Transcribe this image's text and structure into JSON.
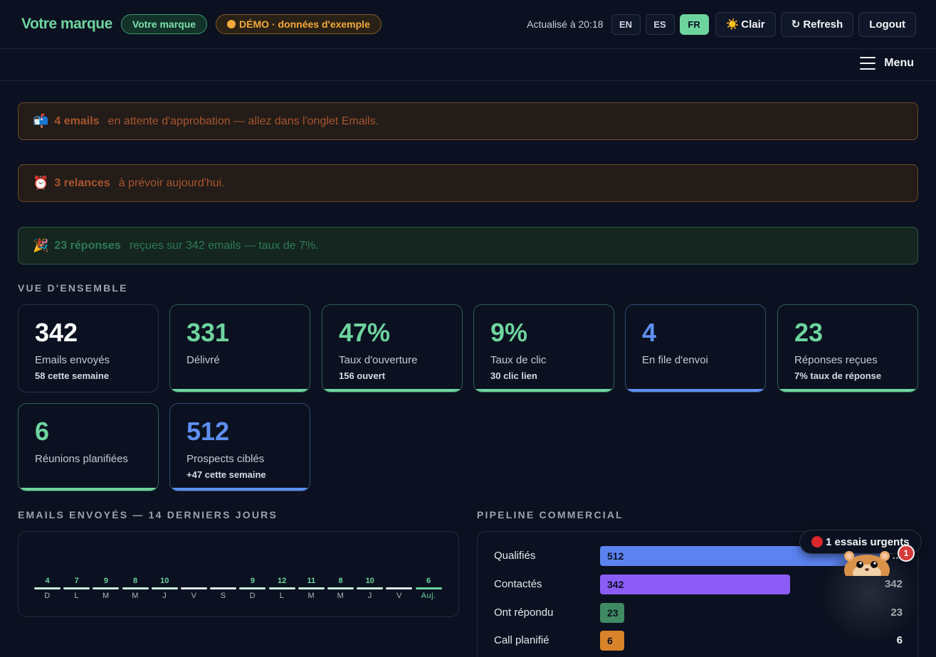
{
  "header": {
    "brand": "Votre marque",
    "brand_pill": "Votre marque",
    "demo_pill": "DÉMO · données d'exemple",
    "updated": "Actualisé à 20:18",
    "langs": [
      "EN",
      "ES",
      "FR"
    ],
    "active_lang": "FR",
    "theme_label": "Clair",
    "theme_icon": "☀️",
    "refresh_label": "↻ Refresh",
    "logout_label": "Logout",
    "menu_label": "Menu"
  },
  "alerts": [
    {
      "icon": "📬",
      "strong": "4 emails",
      "text": "en attente d'approbation — allez dans l'onglet Emails."
    },
    {
      "icon": "⏰",
      "strong": "3 relances",
      "text": "à prévoir aujourd'hui."
    },
    {
      "icon": "🎉",
      "strong": "23 réponses",
      "text": "reçues sur 342 emails — taux de 7%."
    }
  ],
  "overview": {
    "title": "VUE D'ENSEMBLE",
    "cards": [
      {
        "value": "342",
        "label": "Emails envoyés",
        "sub": "58 cette semaine",
        "color": "#ffffff"
      },
      {
        "value": "331",
        "label": "Délivré",
        "sub": "",
        "color": "#6ed49e"
      },
      {
        "value": "47%",
        "label": "Taux d'ouverture",
        "sub": "156 ouvert",
        "color": "#6ed49e"
      },
      {
        "value": "9%",
        "label": "Taux de clic",
        "sub": "30 clic lien",
        "color": "#6ed49e"
      },
      {
        "value": "4",
        "label": "En file d'envoi",
        "sub": "",
        "color": "#5d8ff0"
      },
      {
        "value": "23",
        "label": "Réponses reçues",
        "sub": "7% taux de réponse",
        "color": "#6ed49e"
      },
      {
        "value": "6",
        "label": "Réunions planifiées",
        "sub": "",
        "color": "#6ed49e"
      },
      {
        "value": "512",
        "label": "Prospects ciblés",
        "sub": "+47 cette semaine",
        "color": "#5d8ff0"
      }
    ]
  },
  "emails_chart": {
    "title": "EMAILS ENVOYÉS — 14 DERNIERS JOURS",
    "days": [
      {
        "d": "D",
        "v": "4"
      },
      {
        "d": "L",
        "v": "7"
      },
      {
        "d": "M",
        "v": "9"
      },
      {
        "d": "M",
        "v": "8"
      },
      {
        "d": "J",
        "v": "10"
      },
      {
        "d": "V",
        "v": ""
      },
      {
        "d": "S",
        "v": ""
      },
      {
        "d": "D",
        "v": "9"
      },
      {
        "d": "L",
        "v": "12"
      },
      {
        "d": "M",
        "v": "11"
      },
      {
        "d": "M",
        "v": "8"
      },
      {
        "d": "J",
        "v": "10"
      },
      {
        "d": "V",
        "v": ""
      },
      {
        "d": "Aujourd'hui",
        "v": "6"
      }
    ],
    "today_label": "Auj."
  },
  "pipeline": {
    "title": "PIPELINE COMMERCIAL",
    "max": 512,
    "rows": [
      {
        "label": "Qualifiés",
        "value": 512,
        "text": "512",
        "color": "#5b82ef",
        "textColor": "#0b1120"
      },
      {
        "label": "Contactés",
        "value": 342,
        "text": "342",
        "color": "#8b5cf6",
        "textColor": "#0b1120"
      },
      {
        "label": "Ont répondu",
        "value": 23,
        "text": "23",
        "color": "#3f8a63",
        "textColor": "#0b1120"
      },
      {
        "label": "Call planifié",
        "value": 6,
        "text": "6",
        "color": "#d9832a",
        "textColor": "#0b1120"
      }
    ],
    "right_values": [
      "…",
      "342",
      "23",
      "6"
    ]
  },
  "urgent": {
    "text": "1 essais urgents",
    "badge": "1"
  }
}
